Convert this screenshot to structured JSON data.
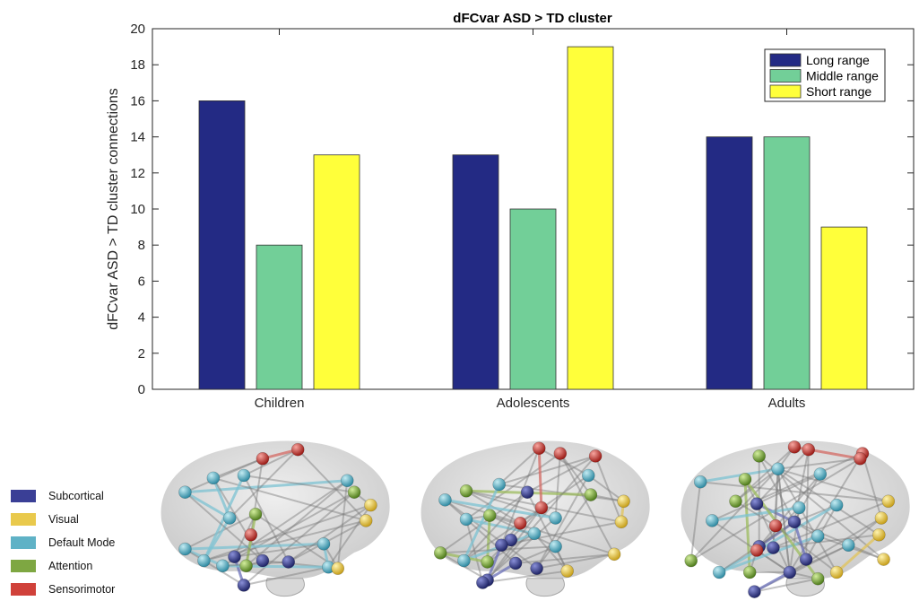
{
  "chart_data": {
    "type": "bar",
    "title": "dFCvar ASD > TD cluster",
    "ylabel": "dFCvar ASD > TD cluster connections",
    "xlabel": "",
    "categories": [
      "Children",
      "Adolescents",
      "Adults"
    ],
    "ylim": [
      0,
      20
    ],
    "yticks": [
      0,
      2,
      4,
      6,
      8,
      10,
      12,
      14,
      16,
      18,
      20
    ],
    "legend_position": "top-right",
    "grid": false,
    "series": [
      {
        "name": "Long range",
        "color": "#232a84",
        "values": [
          16,
          13,
          14
        ]
      },
      {
        "name": "Middle range",
        "color": "#72cf98",
        "values": [
          8,
          10,
          14
        ]
      },
      {
        "name": "Short range",
        "color": "#ffff3a",
        "values": [
          13,
          19,
          9
        ]
      }
    ]
  },
  "network_legend": {
    "items": [
      {
        "label": "Subcortical",
        "color": "#3a3f96"
      },
      {
        "label": "Visual",
        "color": "#e9c94c"
      },
      {
        "label": "Default Mode",
        "color": "#5fb2c6"
      },
      {
        "label": "Attention",
        "color": "#7ea742"
      },
      {
        "label": "Sensorimotor",
        "color": "#d0413a"
      }
    ]
  },
  "brain_views": [
    {
      "name": "Children",
      "nodes": [
        [
          "dmn",
          0.12,
          0.38
        ],
        [
          "dmn",
          0.24,
          0.27
        ],
        [
          "dmn",
          0.37,
          0.25
        ],
        [
          "sm",
          0.45,
          0.12
        ],
        [
          "sm",
          0.6,
          0.05
        ],
        [
          "dmn",
          0.81,
          0.29
        ],
        [
          "att",
          0.84,
          0.38
        ],
        [
          "vis",
          0.91,
          0.48
        ],
        [
          "vis",
          0.89,
          0.6
        ],
        [
          "att",
          0.42,
          0.55
        ],
        [
          "dmn",
          0.31,
          0.58
        ],
        [
          "sm",
          0.4,
          0.71
        ],
        [
          "dmn",
          0.12,
          0.82
        ],
        [
          "dmn",
          0.2,
          0.91
        ],
        [
          "sub",
          0.33,
          0.88
        ],
        [
          "att",
          0.38,
          0.95
        ],
        [
          "sub",
          0.45,
          0.91
        ],
        [
          "sub",
          0.56,
          0.92
        ],
        [
          "dmn",
          0.71,
          0.78
        ],
        [
          "dmn",
          0.73,
          0.96
        ],
        [
          "vis",
          0.77,
          0.97
        ],
        [
          "sub",
          0.37,
          1.1
        ],
        [
          "dmn",
          0.28,
          0.95
        ]
      ]
    },
    {
      "name": "Adolescents",
      "nodes": [
        [
          "sm",
          0.52,
          0.04
        ],
        [
          "sm",
          0.61,
          0.08
        ],
        [
          "sm",
          0.76,
          0.1
        ],
        [
          "dmn",
          0.73,
          0.25
        ],
        [
          "sub",
          0.47,
          0.38
        ],
        [
          "dmn",
          0.35,
          0.32
        ],
        [
          "att",
          0.21,
          0.37
        ],
        [
          "dmn",
          0.12,
          0.44
        ],
        [
          "att",
          0.74,
          0.4
        ],
        [
          "vis",
          0.88,
          0.45
        ],
        [
          "dmn",
          0.21,
          0.59
        ],
        [
          "att",
          0.31,
          0.56
        ],
        [
          "sm",
          0.53,
          0.5
        ],
        [
          "sm",
          0.44,
          0.62
        ],
        [
          "sub",
          0.4,
          0.75
        ],
        [
          "dmn",
          0.5,
          0.7
        ],
        [
          "dmn",
          0.59,
          0.58
        ],
        [
          "vis",
          0.87,
          0.61
        ],
        [
          "sub",
          0.36,
          0.79
        ],
        [
          "dmn",
          0.59,
          0.8
        ],
        [
          "att",
          0.1,
          0.85
        ],
        [
          "dmn",
          0.2,
          0.91
        ],
        [
          "att",
          0.3,
          0.92
        ],
        [
          "sub",
          0.42,
          0.93
        ],
        [
          "sub",
          0.51,
          0.97
        ],
        [
          "vis",
          0.64,
          0.99
        ],
        [
          "vis",
          0.84,
          0.86
        ],
        [
          "sub",
          0.3,
          1.06
        ],
        [
          "sub",
          0.28,
          1.08
        ]
      ]
    },
    {
      "name": "Adults",
      "nodes": [
        [
          "sm",
          0.5,
          0.03
        ],
        [
          "sm",
          0.56,
          0.05
        ],
        [
          "sm",
          0.79,
          0.08
        ],
        [
          "sm",
          0.78,
          0.12
        ],
        [
          "att",
          0.35,
          0.1
        ],
        [
          "dmn",
          0.43,
          0.2
        ],
        [
          "dmn",
          0.1,
          0.3
        ],
        [
          "dmn",
          0.61,
          0.24
        ],
        [
          "att",
          0.29,
          0.28
        ],
        [
          "att",
          0.25,
          0.45
        ],
        [
          "sub",
          0.34,
          0.47
        ],
        [
          "dmn",
          0.52,
          0.5
        ],
        [
          "vis",
          0.9,
          0.45
        ],
        [
          "dmn",
          0.68,
          0.48
        ],
        [
          "dmn",
          0.15,
          0.6
        ],
        [
          "sm",
          0.42,
          0.64
        ],
        [
          "sub",
          0.5,
          0.61
        ],
        [
          "vis",
          0.87,
          0.58
        ],
        [
          "vis",
          0.86,
          0.71
        ],
        [
          "sub",
          0.35,
          0.8
        ],
        [
          "sm",
          0.34,
          0.83
        ],
        [
          "sub",
          0.41,
          0.81
        ],
        [
          "dmn",
          0.6,
          0.72
        ],
        [
          "dmn",
          0.73,
          0.79
        ],
        [
          "att",
          0.06,
          0.91
        ],
        [
          "dmn",
          0.18,
          1.0
        ],
        [
          "att",
          0.31,
          1.0
        ],
        [
          "sub",
          0.48,
          1.0
        ],
        [
          "sub",
          0.55,
          0.9
        ],
        [
          "att",
          0.6,
          1.05
        ],
        [
          "vis",
          0.68,
          1.0
        ],
        [
          "vis",
          0.88,
          0.9
        ],
        [
          "sub",
          0.33,
          1.15
        ]
      ]
    }
  ]
}
